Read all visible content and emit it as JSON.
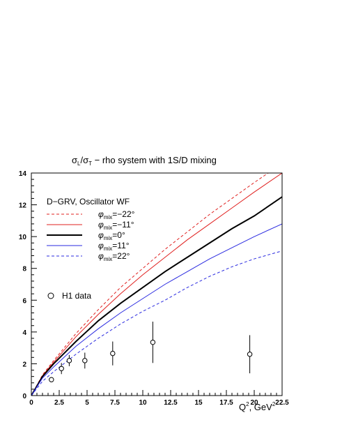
{
  "chart_data": {
    "type": "line",
    "title_parts": {
      "sigma1": "σ",
      "sub1": "L",
      "slash": "/",
      "sigma2": "σ",
      "sub2": "T",
      "rest": " − rho system with 1S/D mixing"
    },
    "xlabel_parts": {
      "q": "Q",
      "q_sup": "2",
      "unit": ", GeV",
      "unit_sup": "2"
    },
    "xlim": [
      0,
      22.5
    ],
    "ylim": [
      0,
      14
    ],
    "x_ticks": [
      0,
      2.5,
      5,
      7.5,
      10,
      12.5,
      15,
      17.5,
      20,
      22.5
    ],
    "x_tick_labels": [
      "0",
      "2.5",
      "5",
      "7.5",
      "10",
      "12.5",
      "15",
      "17.5",
      "20",
      "22.5"
    ],
    "y_ticks": [
      0,
      2,
      4,
      6,
      8,
      10,
      12,
      14
    ],
    "y_tick_labels": [
      "0",
      "2",
      "4",
      "6",
      "8",
      "10",
      "12",
      "14"
    ],
    "legend_header": "D−GRV, Oscillator WF",
    "legend_phi": "φ",
    "legend_sub": "mix",
    "series": [
      {
        "label_value": "=−22°",
        "color": "#e0201f",
        "dash": "dashed",
        "width": 1,
        "x": [
          0,
          1,
          2,
          4,
          6,
          8,
          10,
          12,
          14,
          16,
          18,
          20,
          22.5
        ],
        "y": [
          0,
          1.3,
          2.2,
          3.9,
          5.4,
          6.8,
          8.0,
          9.2,
          10.3,
          11.4,
          12.4,
          13.4,
          14.6
        ]
      },
      {
        "label_value": "=−11°",
        "color": "#e0201f",
        "dash": "solid",
        "width": 1,
        "x": [
          0,
          1,
          2,
          4,
          6,
          8,
          10,
          12,
          14,
          16,
          18,
          20,
          22.5
        ],
        "y": [
          0,
          1.25,
          2.1,
          3.7,
          5.1,
          6.4,
          7.6,
          8.7,
          9.8,
          10.8,
          11.8,
          12.8,
          14.0
        ]
      },
      {
        "label_value": "=0°",
        "color": "#000000",
        "dash": "solid",
        "width": 2,
        "x": [
          0,
          1,
          2,
          4,
          6,
          8,
          10,
          12,
          14,
          16,
          18,
          20,
          22.5
        ],
        "y": [
          0,
          1.2,
          2.0,
          3.4,
          4.7,
          5.8,
          6.8,
          7.8,
          8.7,
          9.6,
          10.5,
          11.3,
          12.5
        ]
      },
      {
        "label_value": "=11°",
        "color": "#2a2ae0",
        "dash": "solid",
        "width": 1,
        "x": [
          0,
          1,
          2,
          4,
          6,
          8,
          10,
          12,
          14,
          16,
          18,
          20,
          22.5
        ],
        "y": [
          0,
          1.1,
          1.8,
          3.1,
          4.2,
          5.2,
          6.1,
          7.0,
          7.8,
          8.6,
          9.3,
          10.0,
          10.8
        ]
      },
      {
        "label_value": "=22°",
        "color": "#2a2ae0",
        "dash": "dashed",
        "width": 1,
        "x": [
          0,
          1,
          2,
          4,
          6,
          8,
          10,
          12,
          14,
          16,
          18,
          20,
          22.5
        ],
        "y": [
          0,
          0.9,
          1.5,
          2.6,
          3.6,
          4.5,
          5.3,
          6.0,
          6.8,
          7.5,
          8.1,
          8.6,
          9.1
        ]
      }
    ],
    "points_label": "H1 data",
    "points": [
      {
        "x": 1.8,
        "y": 1.0,
        "err": 0.15
      },
      {
        "x": 2.7,
        "y": 1.7,
        "err": 0.35
      },
      {
        "x": 3.4,
        "y": 2.2,
        "err": 0.35
      },
      {
        "x": 4.8,
        "y": 2.2,
        "err": 0.5
      },
      {
        "x": 7.3,
        "y": 2.65,
        "err": 0.75
      },
      {
        "x": 10.9,
        "y": 3.35,
        "err": 1.3
      },
      {
        "x": 19.6,
        "y": 2.6,
        "err": 1.2
      }
    ]
  }
}
